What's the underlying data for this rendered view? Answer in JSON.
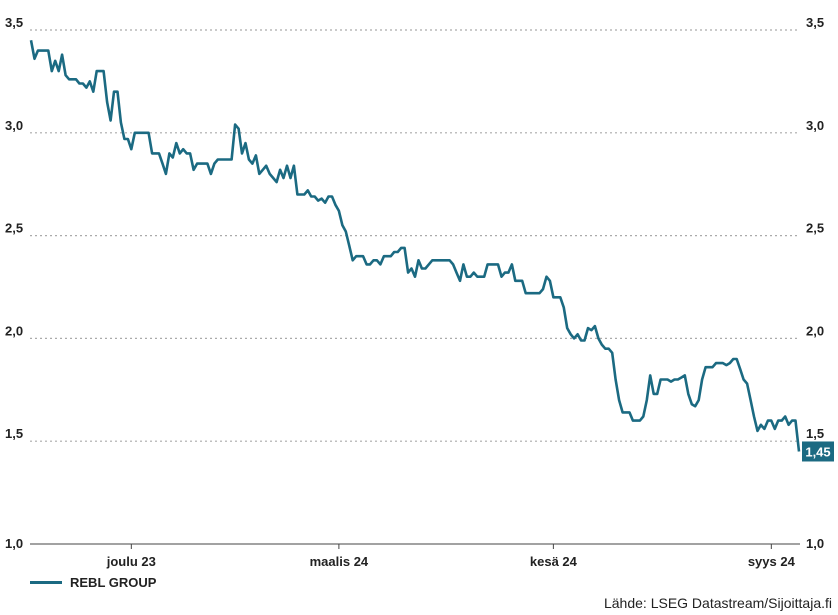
{
  "chart_data": {
    "type": "line",
    "title": "",
    "xlabel": "",
    "ylabel": "",
    "ylim": [
      1.0,
      3.5
    ],
    "y_ticks": [
      "1,0",
      "1,5",
      "2,0",
      "2,5",
      "3,0",
      "3,5"
    ],
    "y_tick_values": [
      1.0,
      1.5,
      2.0,
      2.5,
      3.0,
      3.5
    ],
    "x_ticks": [
      {
        "label": "joulu 23",
        "index": 29
      },
      {
        "label": "maalis 24",
        "index": 89
      },
      {
        "label": "kesä 24",
        "index": 151
      },
      {
        "label": "syys 24",
        "index": 214
      }
    ],
    "grid": true,
    "legend_position": "bottom-left",
    "series": [
      {
        "name": "REBL GROUP",
        "color": "#1b6a82",
        "last_value_label": "1,45",
        "values": [
          3.45,
          3.36,
          3.4,
          3.4,
          3.4,
          3.4,
          3.3,
          3.35,
          3.3,
          3.38,
          3.28,
          3.26,
          3.26,
          3.26,
          3.24,
          3.24,
          3.22,
          3.25,
          3.2,
          3.3,
          3.3,
          3.3,
          3.15,
          3.06,
          3.2,
          3.2,
          3.05,
          2.97,
          2.97,
          2.92,
          3.0,
          3.0,
          3.0,
          3.0,
          3.0,
          2.9,
          2.9,
          2.9,
          2.85,
          2.8,
          2.9,
          2.88,
          2.95,
          2.9,
          2.92,
          2.9,
          2.9,
          2.82,
          2.85,
          2.85,
          2.85,
          2.85,
          2.8,
          2.85,
          2.87,
          2.87,
          2.87,
          2.87,
          2.87,
          3.04,
          3.02,
          2.9,
          2.95,
          2.87,
          2.85,
          2.89,
          2.8,
          2.82,
          2.84,
          2.8,
          2.78,
          2.76,
          2.82,
          2.78,
          2.84,
          2.78,
          2.84,
          2.7,
          2.7,
          2.7,
          2.72,
          2.69,
          2.69,
          2.67,
          2.68,
          2.66,
          2.69,
          2.69,
          2.65,
          2.62,
          2.55,
          2.52,
          2.45,
          2.38,
          2.4,
          2.4,
          2.4,
          2.36,
          2.36,
          2.38,
          2.38,
          2.36,
          2.4,
          2.4,
          2.4,
          2.42,
          2.42,
          2.44,
          2.44,
          2.32,
          2.34,
          2.3,
          2.38,
          2.34,
          2.34,
          2.36,
          2.38,
          2.38,
          2.38,
          2.38,
          2.38,
          2.38,
          2.36,
          2.32,
          2.28,
          2.36,
          2.3,
          2.3,
          2.32,
          2.3,
          2.3,
          2.3,
          2.36,
          2.36,
          2.36,
          2.36,
          2.3,
          2.32,
          2.32,
          2.36,
          2.28,
          2.28,
          2.28,
          2.22,
          2.22,
          2.22,
          2.22,
          2.22,
          2.24,
          2.3,
          2.28,
          2.2,
          2.2,
          2.2,
          2.15,
          2.05,
          2.02,
          2.0,
          2.02,
          1.99,
          1.99,
          2.05,
          2.04,
          2.06,
          2.0,
          1.97,
          1.95,
          1.95,
          1.93,
          1.8,
          1.7,
          1.64,
          1.64,
          1.64,
          1.6,
          1.6,
          1.6,
          1.62,
          1.7,
          1.82,
          1.73,
          1.73,
          1.8,
          1.8,
          1.8,
          1.79,
          1.8,
          1.8,
          1.81,
          1.82,
          1.73,
          1.68,
          1.67,
          1.7,
          1.8,
          1.86,
          1.86,
          1.86,
          1.88,
          1.88,
          1.88,
          1.87,
          1.88,
          1.9,
          1.9,
          1.85,
          1.8,
          1.78,
          1.7,
          1.62,
          1.55,
          1.58,
          1.56,
          1.6,
          1.6,
          1.56,
          1.6,
          1.6,
          1.62,
          1.58,
          1.6,
          1.6,
          1.45
        ]
      }
    ]
  },
  "legend": {
    "label": "REBL GROUP"
  },
  "source": "Lähde: LSEG Datastream/Sijoittaja.fi"
}
